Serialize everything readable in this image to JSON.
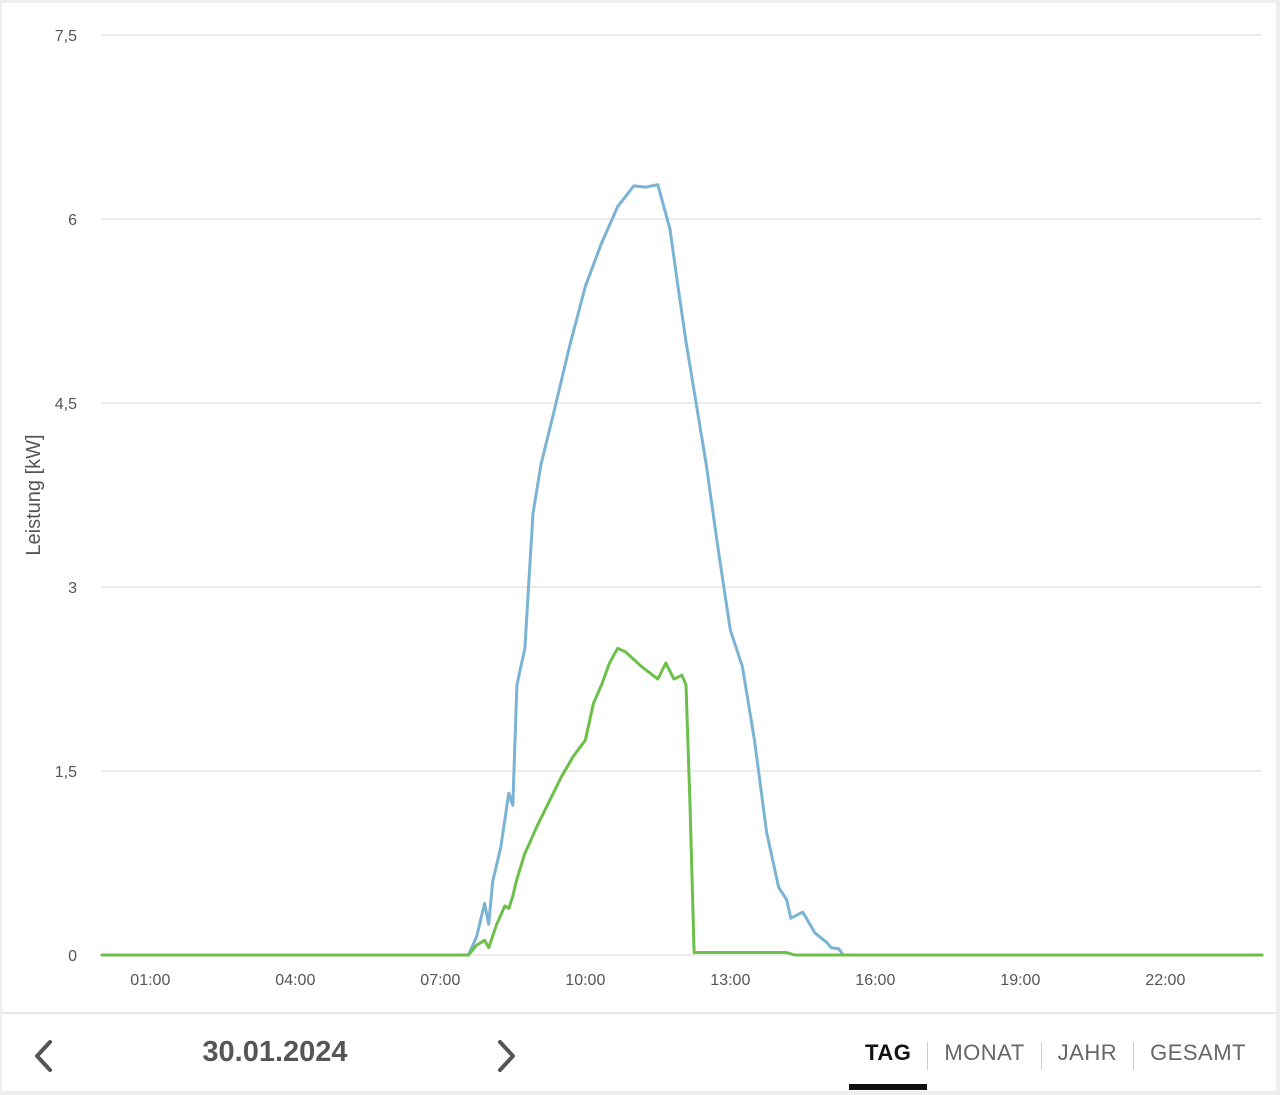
{
  "chart_data": {
    "type": "line",
    "title": "",
    "xlabel": "",
    "ylabel": "Leistung [kW]",
    "ylim": [
      0,
      7.5
    ],
    "xlim": [
      "00:00",
      "24:00"
    ],
    "yticks": [
      "0",
      "1,5",
      "3",
      "4,5",
      "6",
      "7,5"
    ],
    "xticks": [
      "01:00",
      "04:00",
      "07:00",
      "10:00",
      "13:00",
      "16:00",
      "19:00",
      "22:00"
    ],
    "grid": true,
    "series": [
      {
        "color": "#7ab3d3",
        "x": [
          "00:00",
          "07:35",
          "07:45",
          "07:55",
          "08:00",
          "08:05",
          "08:15",
          "08:25",
          "08:30",
          "08:35",
          "08:45",
          "08:50",
          "08:55",
          "09:05",
          "09:20",
          "09:40",
          "10:00",
          "10:20",
          "10:40",
          "11:00",
          "11:15",
          "11:30",
          "11:45",
          "11:55",
          "12:05",
          "12:15",
          "12:30",
          "12:45",
          "13:00",
          "13:15",
          "13:30",
          "13:45",
          "14:00",
          "14:10",
          "14:15",
          "14:30",
          "14:45",
          "15:00",
          "15:05",
          "15:15",
          "15:20",
          "15:30",
          "15:40",
          "16:00",
          "16:20",
          "16:45",
          "24:00"
        ],
        "y": [
          0,
          0,
          0.15,
          0.42,
          0.25,
          0.6,
          0.88,
          1.32,
          1.22,
          2.2,
          2.5,
          3.05,
          3.6,
          4.0,
          4.4,
          4.95,
          5.45,
          5.8,
          6.1,
          6.27,
          6.26,
          6.28,
          5.92,
          5.45,
          5.0,
          4.6,
          4.0,
          3.3,
          2.65,
          2.35,
          1.75,
          1.0,
          0.55,
          0.45,
          0.3,
          0.35,
          0.18,
          0.1,
          0.06,
          0.05,
          0,
          0,
          0,
          0,
          0,
          0,
          0
        ]
      },
      {
        "color": "#6cc04a",
        "x": [
          "00:00",
          "07:35",
          "07:45",
          "07:55",
          "08:00",
          "08:10",
          "08:20",
          "08:25",
          "08:30",
          "08:35",
          "08:45",
          "08:50",
          "09:00",
          "09:15",
          "09:30",
          "09:45",
          "10:00",
          "10:10",
          "10:20",
          "10:30",
          "10:40",
          "10:50",
          "11:00",
          "11:10",
          "11:20",
          "11:30",
          "11:40",
          "11:50",
          "12:00",
          "12:05",
          "12:10",
          "12:15",
          "12:18",
          "12:20",
          "12:25",
          "14:10",
          "14:20",
          "24:00"
        ],
        "y": [
          0,
          0,
          0.08,
          0.12,
          0.06,
          0.25,
          0.4,
          0.38,
          0.48,
          0.62,
          0.83,
          0.9,
          1.05,
          1.25,
          1.45,
          1.62,
          1.75,
          2.05,
          2.2,
          2.38,
          2.5,
          2.47,
          2.41,
          2.35,
          2.3,
          2.25,
          2.38,
          2.25,
          2.28,
          2.2,
          1.2,
          0.02,
          0.02,
          0.02,
          0.02,
          0.02,
          0,
          0
        ]
      }
    ]
  },
  "footer": {
    "prev_icon": "chevron-left-icon",
    "next_icon": "chevron-right-icon",
    "date": "30.01.2024",
    "tabs": [
      {
        "label": "TAG",
        "active": true
      },
      {
        "label": "MONAT",
        "active": false
      },
      {
        "label": "JAHR",
        "active": false
      },
      {
        "label": "GESAMT",
        "active": false
      }
    ]
  }
}
